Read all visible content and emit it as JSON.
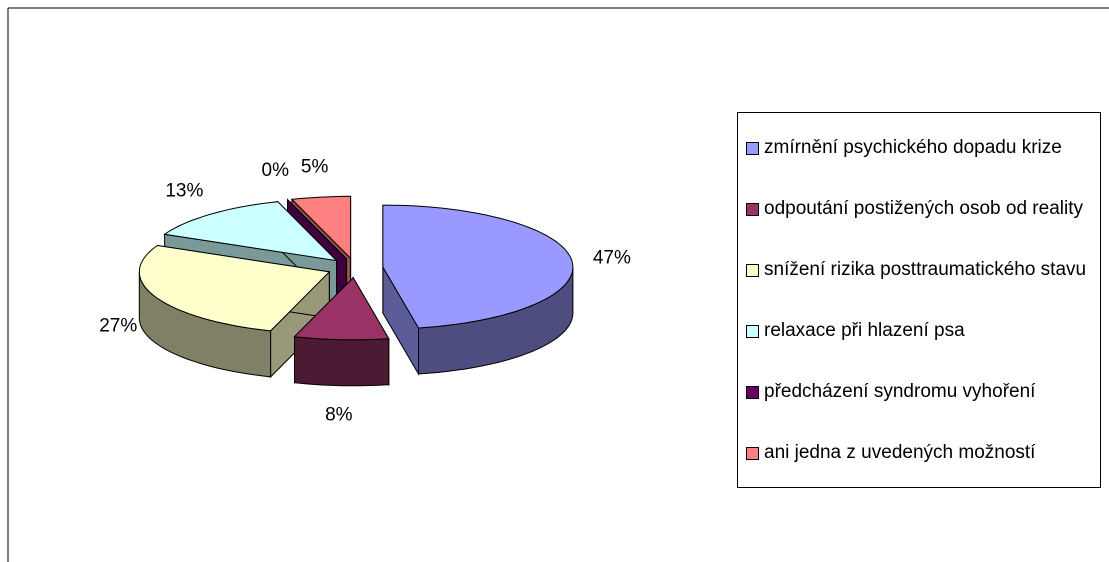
{
  "chart_data": {
    "type": "pie",
    "categories": [
      "zmírnění psychického dopadu krize",
      "odpoutání postižených osob od reality",
      "snížení rizika posttraumatického stavu",
      "relaxace při hlazení psa",
      "předcházení syndromu vyhoření",
      "ani jedna z uvedených možností"
    ],
    "values": [
      47,
      8,
      27,
      13,
      0,
      5
    ],
    "value_labels": [
      "47%",
      "8%",
      "27%",
      "13%",
      "0%",
      "5%"
    ],
    "colors": [
      "#9999FF",
      "#993366",
      "#FFFFCC",
      "#CCFFFF",
      "#660066",
      "#FF8080"
    ],
    "legend": "right"
  }
}
